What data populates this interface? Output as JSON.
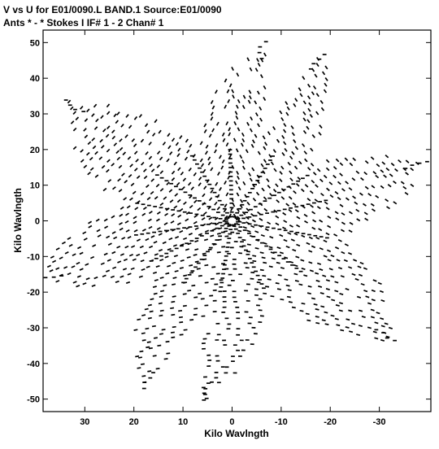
{
  "title": {
    "line1": "V vs U for E01/0090.L BAND.1   Source:E01/0090",
    "line2": "Ants * - *     Stokes I   IF# 1 - 2   Chan# 1"
  },
  "colors": {
    "background": "#ffffff",
    "points": "#000000",
    "frame": "#000000"
  },
  "chart_data": {
    "type": "scatter",
    "title": "V vs U for E01/0090.L BAND.1   Source:E01/0090",
    "subtitle": "Ants * - *     Stokes I   IF# 1 - 2   Chan# 1",
    "xlabel": "Kilo Wavlngth",
    "ylabel": "Kilo Wavlngth",
    "xlim": [
      38.5,
      -40.5
    ],
    "ylim": [
      -53.5,
      53.5
    ],
    "x_reversed": true,
    "grid": false,
    "xticks": [
      30,
      20,
      10,
      0,
      -10,
      -20,
      -30
    ],
    "xtick_labels": [
      "30",
      "20",
      "10",
      "0",
      "-10",
      "-20",
      "-30"
    ],
    "yticks": [
      50,
      40,
      30,
      20,
      10,
      0,
      -10,
      -20,
      -30,
      -40,
      -50
    ],
    "ytick_labels": [
      "50",
      "40",
      "30",
      "20",
      "10",
      "0",
      "-10",
      "-20",
      "-30",
      "-40",
      "-50"
    ],
    "series": [
      {
        "pattern": "radial uv-coverage star (8 arms, symmetric through origin)",
        "arm_endpoints_u_v": [
          [
            -6.5,
            50.5
          ],
          [
            -18.5,
            47
          ],
          [
            -40,
            16.5
          ],
          [
            -33,
            -34
          ],
          [
            5.5,
            -50.5
          ],
          [
            18.5,
            -47
          ],
          [
            39.5,
            -17
          ],
          [
            34,
            34
          ]
        ],
        "valley_radius": 22
      }
    ]
  }
}
